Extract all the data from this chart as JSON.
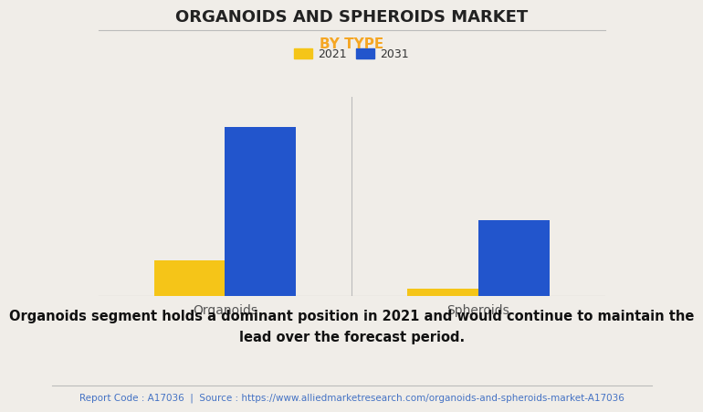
{
  "title": "ORGANOIDS AND SPHEROIDS MARKET",
  "subtitle": "BY TYPE",
  "categories": [
    "Organoids",
    "Spheroids"
  ],
  "series": [
    {
      "label": "2021",
      "values": [
        1.8,
        0.35
      ],
      "color": "#F5C518"
    },
    {
      "label": "2031",
      "values": [
        8.5,
        3.8
      ],
      "color": "#2255CC"
    }
  ],
  "ylim": [
    0,
    10
  ],
  "background_color": "#F0EDE8",
  "plot_background": "#F0EDE8",
  "title_fontsize": 13,
  "subtitle_fontsize": 11,
  "subtitle_color": "#F5A623",
  "legend_fontsize": 9,
  "tick_fontsize": 10,
  "bar_width": 0.28,
  "annotation_text": "Organoids segment holds a dominant position in 2021 and would continue to maintain the\nlead over the forecast period.",
  "footer_text": "Report Code : A17036  |  Source : https://www.alliedmarketresearch.com/organoids-and-spheroids-market-A17036",
  "footer_color": "#4472C4",
  "annotation_fontsize": 10.5,
  "footer_fontsize": 7.5,
  "title_color": "#222222",
  "tick_color": "#555555"
}
